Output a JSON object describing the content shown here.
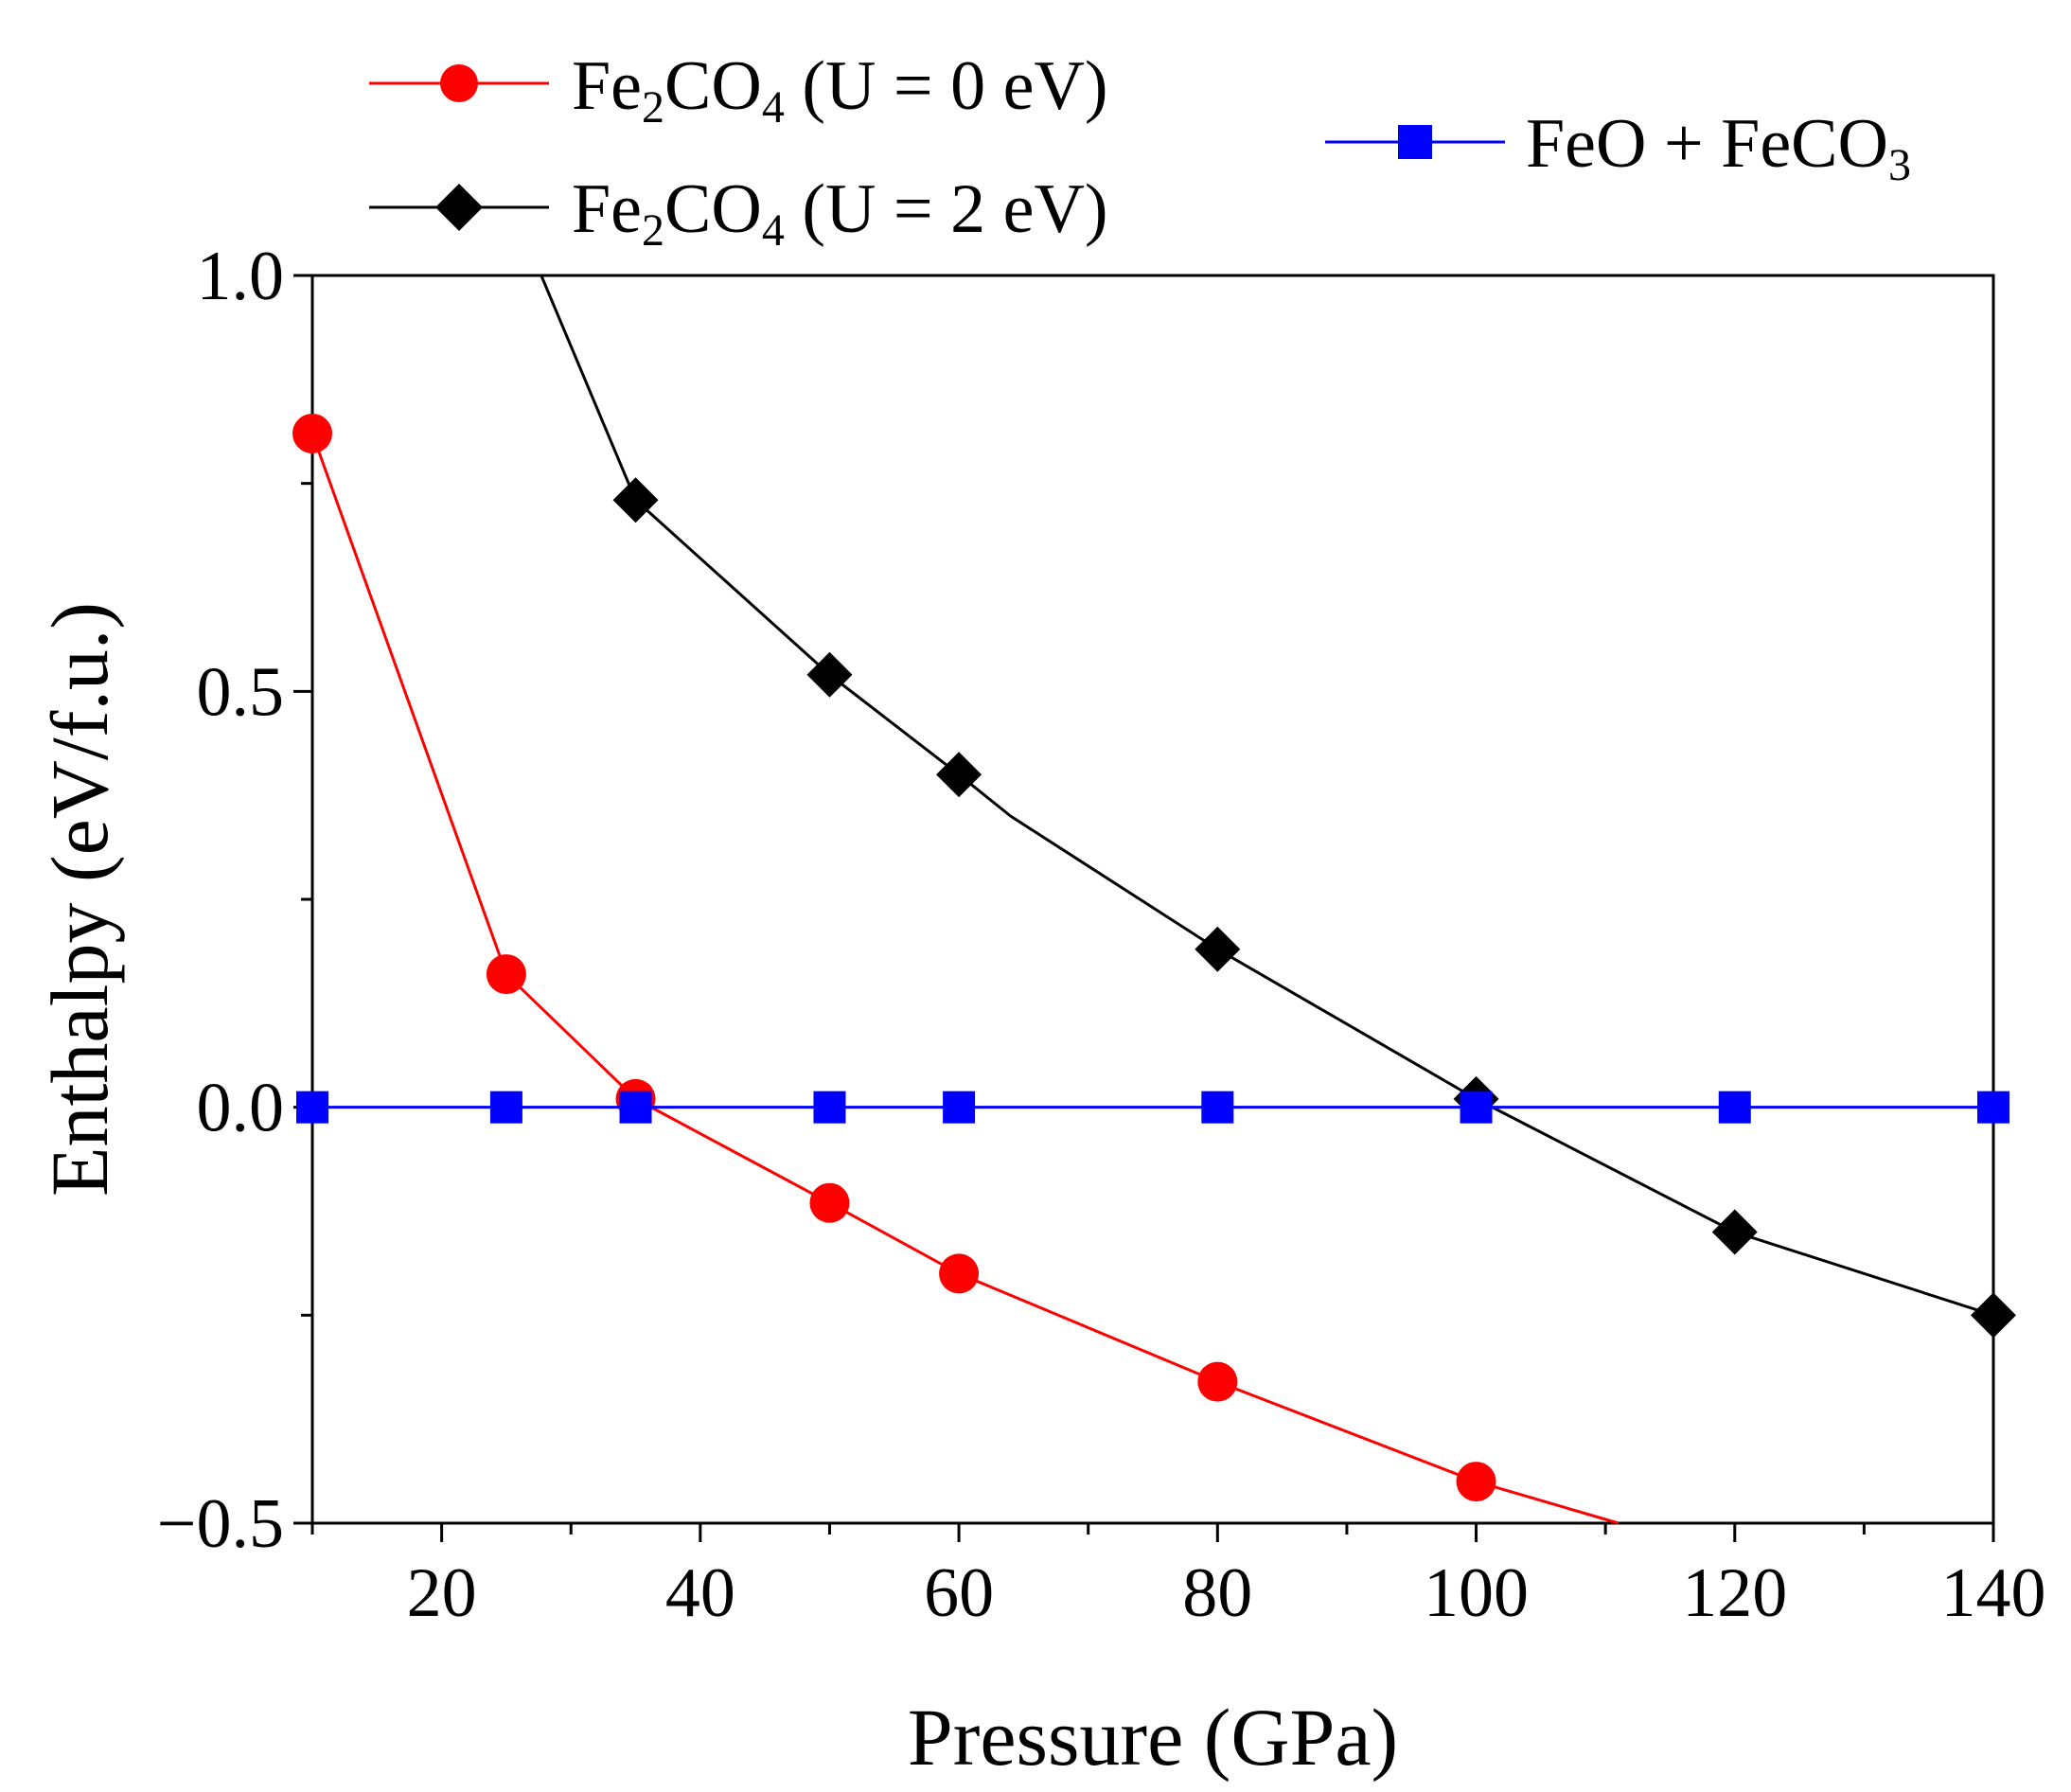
{
  "chart_data": {
    "type": "line",
    "xlabel": "Pressure (GPa)",
    "ylabel": "Enthalpy (eV/f.u.)",
    "xlim": [
      10,
      140
    ],
    "ylim": [
      -0.5,
      1.0
    ],
    "x_ticks": [
      20,
      40,
      60,
      80,
      100,
      120,
      140
    ],
    "y_ticks": [
      -0.5,
      0.0,
      0.5,
      1.0
    ],
    "x_tick_labels": [
      "20",
      "40",
      "60",
      "80",
      "100",
      "120",
      "140"
    ],
    "y_tick_labels": [
      "−0.5",
      "0.0",
      "0.5",
      "1.0"
    ],
    "series": [
      {
        "name": "Fe2CO4 (U = 0 eV)",
        "legend": {
          "base": "Fe",
          "sub1": "2",
          "mid": "CO",
          "sub2": "4",
          "tail": " (U = 0 eV)"
        },
        "color": "#ff0000",
        "marker": "circle",
        "x": [
          10,
          25,
          35,
          50,
          60,
          80,
          100
        ],
        "y": [
          0.81,
          0.16,
          0.01,
          -0.115,
          -0.2,
          -0.33,
          -0.45
        ],
        "line_x": [
          10,
          25,
          35,
          50,
          60,
          80,
          100,
          111
        ],
        "line_y": [
          0.81,
          0.16,
          0.01,
          -0.115,
          -0.2,
          -0.33,
          -0.45,
          -0.5
        ]
      },
      {
        "name": "Fe2CO4 (U = 2 eV)",
        "legend": {
          "base": "Fe",
          "sub1": "2",
          "mid": "CO",
          "sub2": "4",
          "tail": " (U = 2 eV)"
        },
        "color": "#000000",
        "marker": "diamond",
        "x": [
          35,
          50,
          60,
          80,
          100,
          120,
          140
        ],
        "y": [
          0.73,
          0.52,
          0.4,
          0.19,
          0.01,
          -0.15,
          -0.25
        ],
        "line_x": [
          27.7,
          35,
          50,
          60,
          64,
          80,
          100,
          120,
          140
        ],
        "line_y": [
          1.0,
          0.73,
          0.52,
          0.4,
          0.35,
          0.19,
          0.01,
          -0.15,
          -0.25
        ]
      },
      {
        "name": "FeO + FeCO3",
        "legend": {
          "base": "FeO + FeCO",
          "sub1": "3",
          "mid": "",
          "sub2": "",
          "tail": ""
        },
        "color": "#0000ff",
        "marker": "square",
        "x": [
          10,
          25,
          35,
          50,
          60,
          80,
          100,
          120,
          140
        ],
        "y": [
          0,
          0,
          0,
          0,
          0,
          0,
          0,
          0,
          0
        ],
        "line_x": [
          10,
          25,
          35,
          50,
          60,
          80,
          100,
          120,
          140
        ],
        "line_y": [
          0,
          0,
          0,
          0,
          0,
          0,
          0,
          0,
          0
        ]
      }
    ]
  }
}
